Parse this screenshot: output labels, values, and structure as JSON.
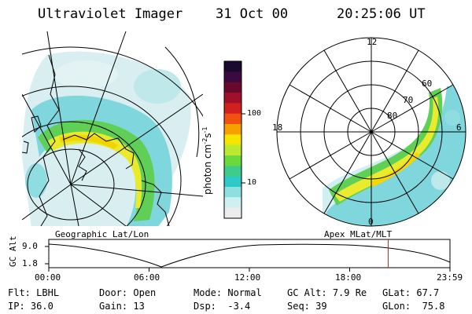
{
  "header": {
    "title": "Ultraviolet Imager",
    "date": "31 Oct 00",
    "time": "20:25:06 UT"
  },
  "colorbar": {
    "unit_prefix": "photon cm",
    "unit_exp1": "-2",
    "unit_mid": "s",
    "unit_exp2": "-1",
    "tick_high": "100",
    "tick_low": "10",
    "colors": [
      "#1a0a2e",
      "#3a0a40",
      "#6a0a2a",
      "#a0102a",
      "#d02020",
      "#f05010",
      "#f7a000",
      "#f5e600",
      "#bde832",
      "#6bd93c",
      "#3fcb8a",
      "#2ec9c9",
      "#8fdfe0",
      "#cfeff0",
      "#ececec"
    ]
  },
  "left_panel": {
    "projection_label": "Geographic Lat/Lon"
  },
  "right_panel": {
    "projection_label": "Apex  MLat/MLT",
    "mlt_labels": {
      "top": "12",
      "left": "18",
      "right": "6",
      "bottom": "0"
    },
    "lat_labels": [
      "60",
      "70",
      "80"
    ]
  },
  "alt_plot": {
    "ylabel": "GC Alt",
    "yticks": [
      "9.0",
      "1.8"
    ],
    "xticks": [
      "00:00",
      "06:00",
      "12:00",
      "18:00",
      "23:59"
    ],
    "current_time_fraction": 0.846
  },
  "status": {
    "row1": [
      {
        "k": "Flt:",
        "v": "LBHL"
      },
      {
        "k": "Door:",
        "v": "Open"
      },
      {
        "k": "Mode:",
        "v": "Normal"
      },
      {
        "k": "GC Alt:",
        "v": "7.9 Re"
      },
      {
        "k": "GLat:",
        "v": "67.7"
      }
    ],
    "row2": [
      {
        "k": "IP:",
        "v": "36.0"
      },
      {
        "k": "Gain:",
        "v": "13"
      },
      {
        "k": "Dsp:",
        "v": "-3.4"
      },
      {
        "k": "Seq:",
        "v": "39"
      },
      {
        "k": "GLon:",
        "v": "75.8"
      }
    ]
  }
}
